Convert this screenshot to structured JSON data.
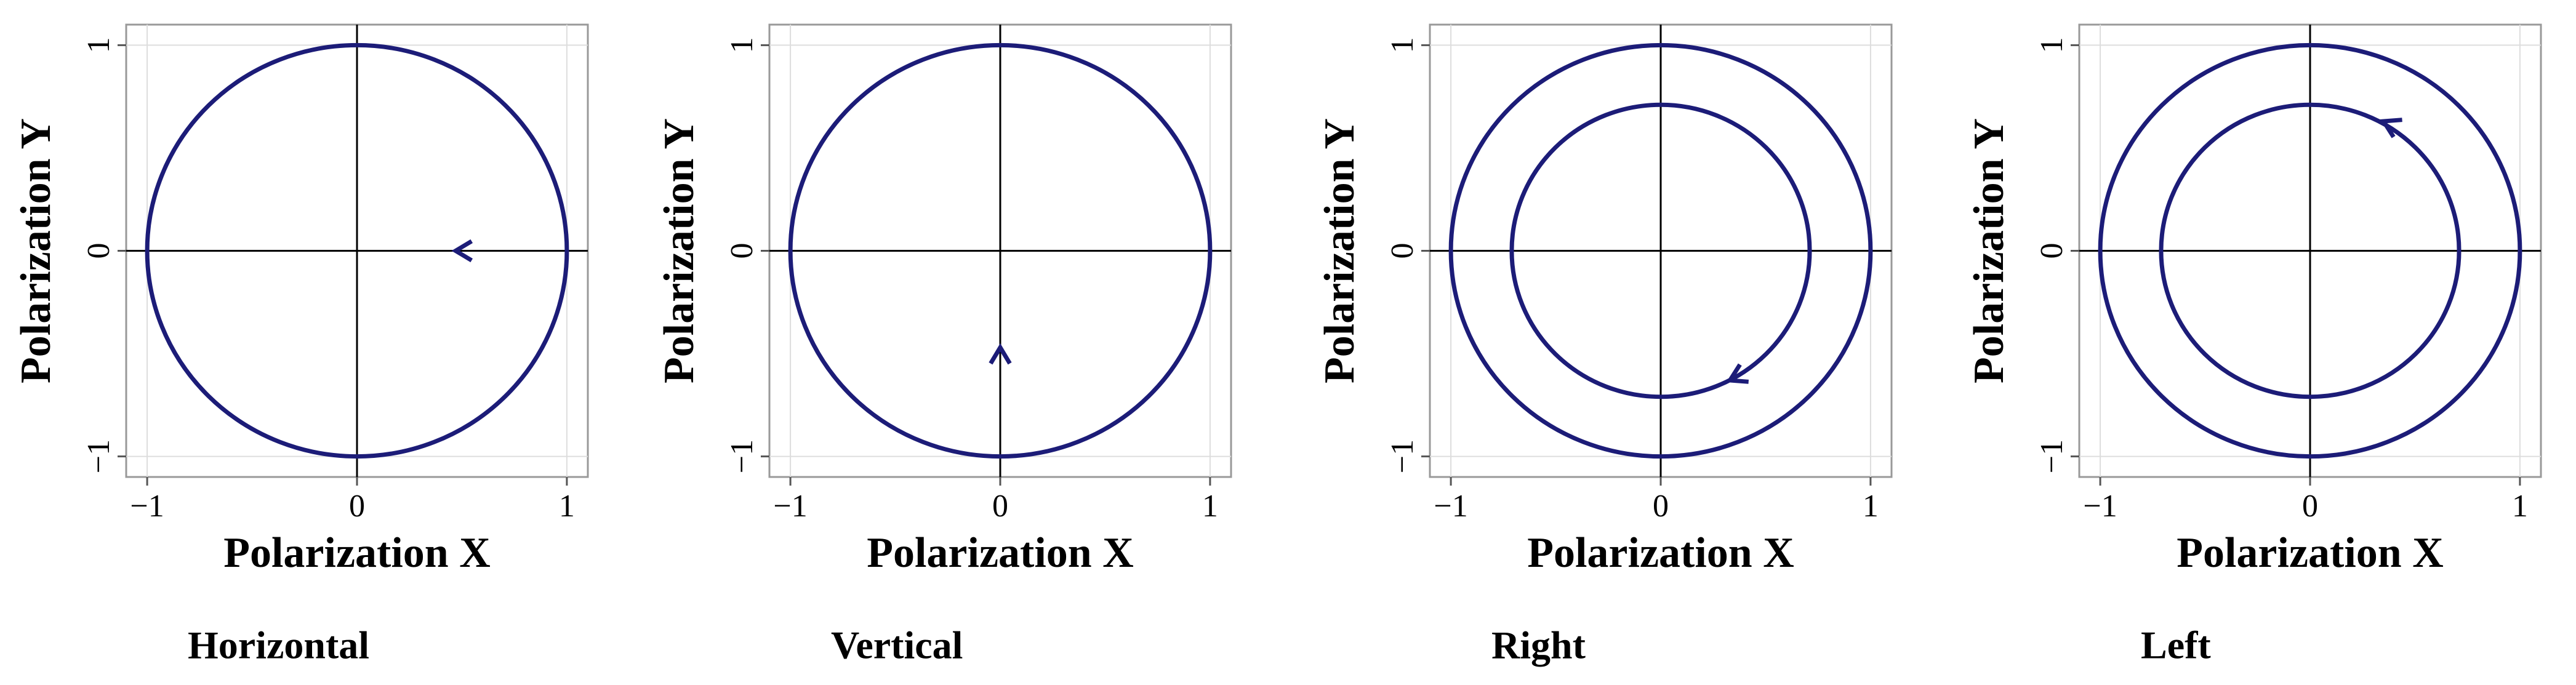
{
  "chart_data": [
    {
      "type": "ellipse",
      "caption": "Horizontal",
      "xlabel": "Polarization X",
      "ylabel": "Polarization Y",
      "xlim": [
        -1.1,
        1.1
      ],
      "ylim": [
        -1.1,
        1.1
      ],
      "xticks": [
        {
          "value": -1,
          "label": "−1"
        },
        0,
        1
      ],
      "yticks": [
        {
          "value": -1,
          "label": "−1"
        },
        0,
        1
      ],
      "grid": true,
      "series": [
        {
          "color": "#1c1c78",
          "rx": 1,
          "ry": 1
        },
        {
          "color": "#1c1c78",
          "rx": 1,
          "ry": 0
        }
      ],
      "arrow": {
        "x": 0.47,
        "y": 0,
        "dx": -1,
        "dy": 0
      }
    },
    {
      "type": "ellipse",
      "caption": "Vertical",
      "xlabel": "Polarization X",
      "ylabel": "Polarization Y",
      "xlim": [
        -1.1,
        1.1
      ],
      "ylim": [
        -1.1,
        1.1
      ],
      "xticks": [
        {
          "value": -1,
          "label": "−1"
        },
        0,
        1
      ],
      "yticks": [
        {
          "value": -1,
          "label": "−1"
        },
        0,
        1
      ],
      "grid": true,
      "series": [
        {
          "color": "#1c1c78",
          "rx": 1,
          "ry": 1
        },
        {
          "color": "#1c1c78",
          "rx": 0,
          "ry": 1
        }
      ],
      "arrow": {
        "x": 0,
        "y": -0.47,
        "dx": 0,
        "dy": 1
      }
    },
    {
      "type": "ellipse",
      "caption": "Right",
      "xlabel": "Polarization X",
      "ylabel": "Polarization Y",
      "xlim": [
        -1.1,
        1.1
      ],
      "ylim": [
        -1.1,
        1.1
      ],
      "xticks": [
        {
          "value": -1,
          "label": "−1"
        },
        0,
        1
      ],
      "yticks": [
        {
          "value": -1,
          "label": "−1"
        },
        0,
        1
      ],
      "grid": true,
      "series": [
        {
          "color": "#1c1c78",
          "rx": 1,
          "ry": 1
        },
        {
          "color": "#1c1c78",
          "rx": 0.71,
          "ry": 0.71
        }
      ],
      "arrow": {
        "x": 0.33,
        "y": -0.63,
        "dx": -0.9,
        "dy": -0.45
      }
    },
    {
      "type": "ellipse",
      "caption": "Left",
      "xlabel": "Polarization X",
      "ylabel": "Polarization Y",
      "xlim": [
        -1.1,
        1.1
      ],
      "ylim": [
        -1.1,
        1.1
      ],
      "xticks": [
        {
          "value": -1,
          "label": "−1"
        },
        0,
        1
      ],
      "yticks": [
        {
          "value": -1,
          "label": "−1"
        },
        0,
        1
      ],
      "grid": true,
      "series": [
        {
          "color": "#1c1c78",
          "rx": 1,
          "ry": 1
        },
        {
          "color": "#1c1c78",
          "rx": 0.71,
          "ry": 0.71
        }
      ],
      "arrow": {
        "x": 0.35,
        "y": 0.63,
        "dx": -0.9,
        "dy": 0.45
      }
    }
  ]
}
